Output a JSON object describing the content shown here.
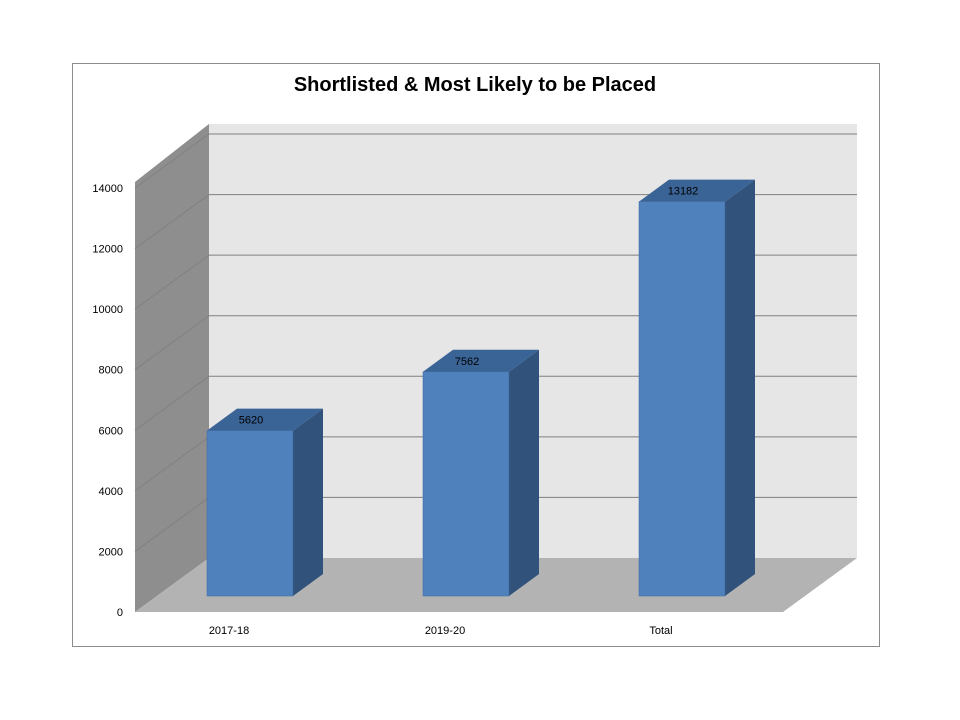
{
  "chart_data": {
    "type": "bar",
    "title": "Shortlisted & Most Likely to be Placed",
    "categories": [
      "2017-18",
      "2019-20",
      "Total"
    ],
    "values": [
      5620,
      7562,
      13182
    ],
    "data_labels": [
      "5620",
      "7562",
      "13182"
    ],
    "y_ticks": [
      0,
      2000,
      4000,
      6000,
      8000,
      10000,
      12000,
      14000
    ],
    "y_tick_labels": [
      "0",
      "2000",
      "4000",
      "6000",
      "8000",
      "10000",
      "12000",
      "14000"
    ],
    "ylim": [
      0,
      14000
    ],
    "grid": true,
    "legend": "none",
    "style": "3d-column",
    "colors": {
      "bar_front": "#4f81bd",
      "bar_side": "#31527b",
      "bar_top": "#3a6396",
      "back_wall": "#e6e6e6",
      "side_wall": "#8e8e8e",
      "floor": "#b3b3b3",
      "gridline": "#808080"
    }
  }
}
